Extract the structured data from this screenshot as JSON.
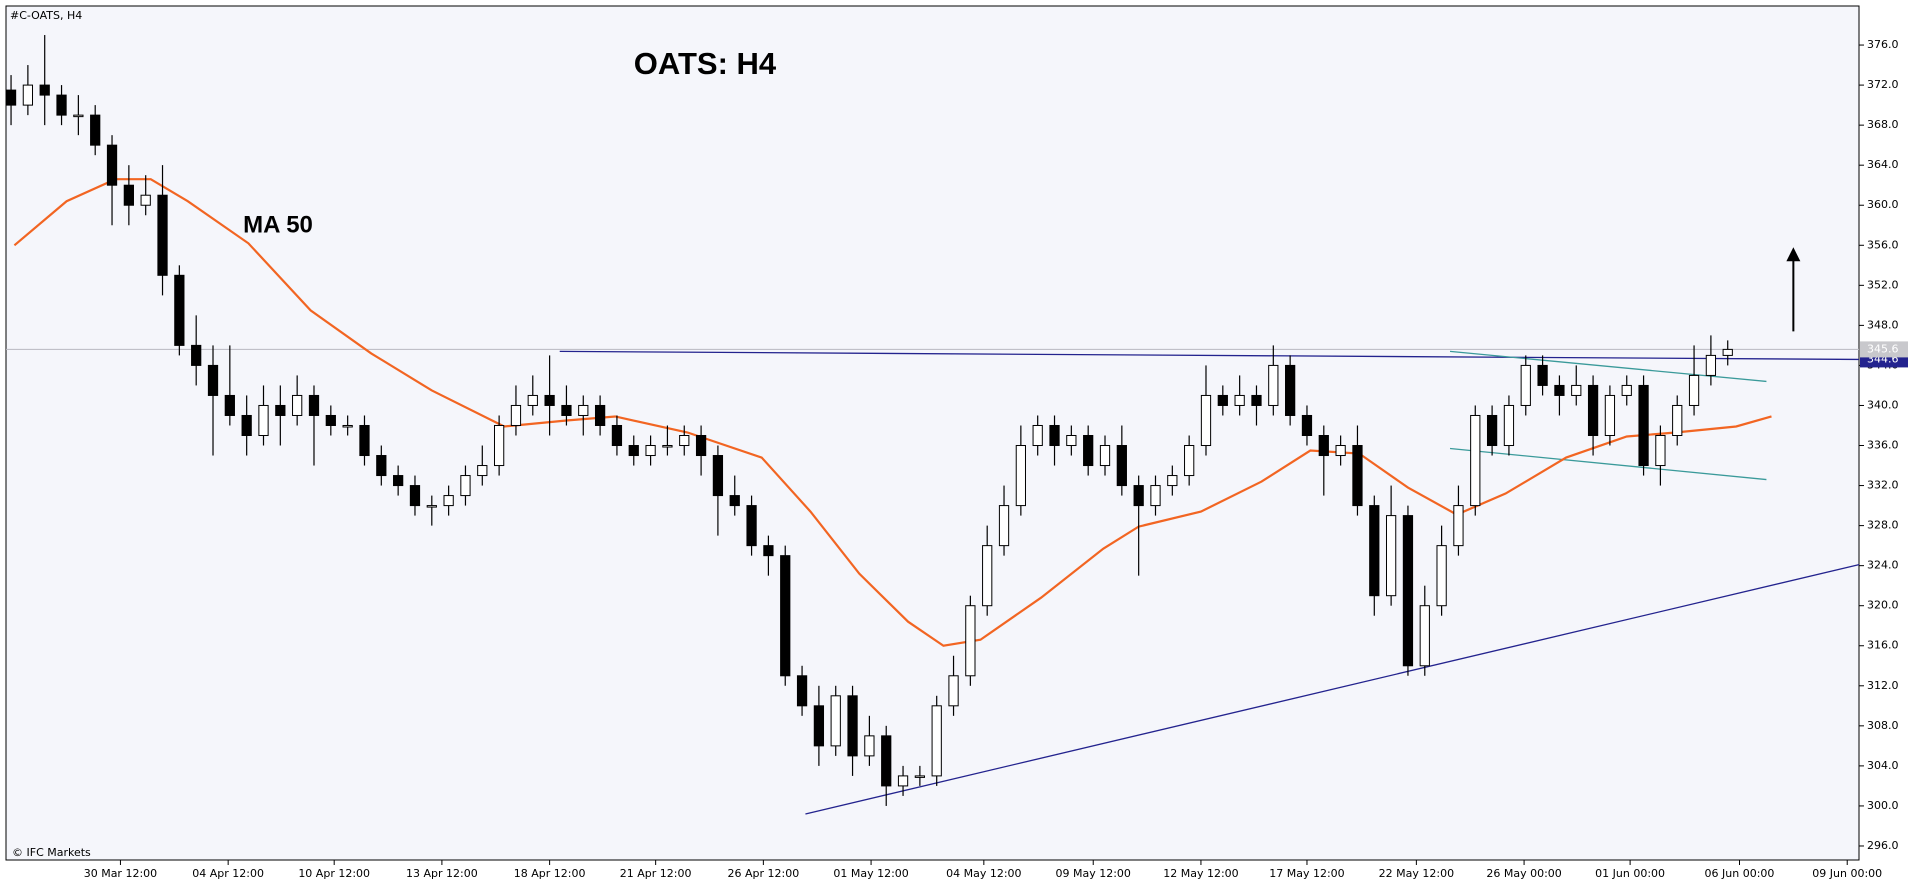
{
  "chart_data": {
    "type": "candlestick",
    "title": "OATS: H4",
    "symbol": "#C-OATS, H4",
    "watermark": "© IFC Markets",
    "xlim": [
      -0.3,
      109.8
    ],
    "ylim": [
      294.6,
      379.9
    ],
    "xticks": [
      {
        "value": 6.5,
        "label": "30 Mar 12:00"
      },
      {
        "value": 12.9,
        "label": "04 Apr 12:00"
      },
      {
        "value": 19.2,
        "label": "10 Apr 12:00"
      },
      {
        "value": 25.6,
        "label": "13 Apr 12:00"
      },
      {
        "value": 32,
        "label": "18 Apr 12:00"
      },
      {
        "value": 38.3,
        "label": "21 Apr 12:00"
      },
      {
        "value": 44.7,
        "label": "26 Apr 12:00"
      },
      {
        "value": 51.1,
        "label": "01 May 12:00"
      },
      {
        "value": 57.8,
        "label": "04 May 12:00"
      },
      {
        "value": 64.3,
        "label": "09 May 12:00"
      },
      {
        "value": 70.7,
        "label": "12 May 12:00"
      },
      {
        "value": 77,
        "label": "17 May 12:00"
      },
      {
        "value": 83.5,
        "label": "22 May 12:00"
      },
      {
        "value": 89.9,
        "label": "26 May 00:00"
      },
      {
        "value": 96.2,
        "label": "01 Jun 00:00"
      },
      {
        "value": 102.7,
        "label": "06 Jun 00:00"
      },
      {
        "value": 109.1,
        "label": "09 Jun 00:00"
      }
    ],
    "yticks": [
      {
        "value": 296,
        "label": "296.0"
      },
      {
        "value": 300,
        "label": "300.0"
      },
      {
        "value": 304,
        "label": "304.0"
      },
      {
        "value": 308,
        "label": "308.0"
      },
      {
        "value": 312,
        "label": "312.0"
      },
      {
        "value": 316,
        "label": "316.0"
      },
      {
        "value": 320,
        "label": "320.0"
      },
      {
        "value": 324,
        "label": "324.0"
      },
      {
        "value": 328,
        "label": "328.0"
      },
      {
        "value": 332,
        "label": "332.0"
      },
      {
        "value": 336,
        "label": "336.0"
      },
      {
        "value": 340,
        "label": "340.0"
      },
      {
        "value": 344,
        "label": "344.0"
      },
      {
        "value": 348,
        "label": "348.0"
      },
      {
        "value": 352,
        "label": "352.0"
      },
      {
        "value": 356,
        "label": "356.0"
      },
      {
        "value": 360,
        "label": "360.0"
      },
      {
        "value": 364,
        "label": "364.0"
      },
      {
        "value": 368,
        "label": "368.0"
      },
      {
        "value": 372,
        "label": "372.0"
      },
      {
        "value": 376,
        "label": "376.0"
      }
    ],
    "candles": {
      "bull_color": "#ffffff",
      "bear_color": "#000000",
      "x": [
        0,
        1,
        2,
        3,
        4,
        5,
        6,
        7,
        8,
        9,
        10,
        11,
        12,
        13,
        14,
        15,
        16,
        17,
        18,
        19,
        20,
        21,
        22,
        23,
        24,
        25,
        26,
        27,
        28,
        29,
        30,
        31,
        32,
        33,
        34,
        35,
        36,
        37,
        38,
        39,
        40,
        41,
        42,
        43,
        44,
        45,
        46,
        47,
        48,
        49,
        50,
        51,
        52,
        53,
        54,
        55,
        56,
        57,
        58,
        59,
        60,
        61,
        62,
        63,
        64,
        65,
        66,
        67,
        68,
        69,
        70,
        71,
        72,
        73,
        74,
        75,
        76,
        77,
        78,
        79,
        80,
        81,
        82,
        83,
        84,
        85,
        86,
        87,
        88,
        89,
        90,
        91,
        92,
        93,
        94,
        95,
        96,
        97,
        98,
        99,
        100,
        101,
        102
      ],
      "open": [
        371.5,
        370,
        372,
        371,
        369,
        369,
        366,
        362,
        360,
        361,
        353,
        346,
        344,
        341,
        339,
        337,
        340,
        339,
        341,
        339,
        338,
        338,
        335,
        333,
        332,
        330,
        330,
        331,
        333,
        334,
        338,
        340,
        341,
        340,
        339,
        340,
        338,
        336,
        335,
        336,
        336,
        337,
        335,
        331,
        330,
        326,
        325,
        313,
        310,
        306,
        311,
        305,
        307,
        302,
        303,
        303,
        310,
        313,
        320,
        326,
        330,
        336,
        338,
        336,
        337,
        334,
        336,
        332,
        330,
        332,
        333,
        336,
        341,
        340,
        341,
        340,
        344,
        339,
        337,
        335,
        336,
        330,
        321,
        329,
        314,
        320,
        326,
        330,
        339,
        336,
        340,
        344,
        342,
        341,
        342,
        337,
        341,
        342,
        334,
        337,
        340,
        343,
        345
      ],
      "high": [
        373,
        374,
        377,
        372,
        371,
        370,
        367,
        364,
        363,
        364,
        354,
        349,
        346,
        346,
        341,
        342,
        342,
        343,
        342,
        340,
        339,
        339,
        336,
        334,
        333,
        331,
        332,
        334,
        336,
        339,
        342,
        343,
        345,
        342,
        341,
        341,
        339,
        337,
        337,
        338,
        338,
        338,
        336,
        333,
        331,
        327,
        326,
        314,
        312,
        312,
        312,
        309,
        308,
        304,
        304,
        311,
        315,
        321,
        328,
        332,
        338,
        339,
        339,
        338,
        338,
        337,
        338,
        333,
        333,
        334,
        337,
        344,
        342,
        343,
        342,
        346,
        345,
        340,
        338,
        337,
        338,
        331,
        332,
        330,
        322,
        328,
        332,
        340,
        340,
        341,
        345,
        345,
        343,
        344,
        343,
        342,
        343,
        343,
        338,
        341,
        346,
        347,
        346.5
      ],
      "low": [
        368,
        369,
        368,
        368,
        367,
        365,
        358,
        358,
        359,
        351,
        345,
        342,
        335,
        338,
        335,
        336,
        336,
        338,
        334,
        337,
        337,
        334,
        332,
        331,
        329,
        328,
        329,
        330,
        332,
        333,
        337,
        339,
        337,
        338,
        337,
        337,
        335,
        334,
        334,
        335,
        335,
        333,
        327,
        329,
        325,
        323,
        312,
        309,
        304,
        305,
        303,
        304,
        300,
        301,
        302,
        302,
        309,
        312,
        319,
        325,
        329,
        335,
        334,
        335,
        333,
        333,
        331,
        323,
        329,
        331,
        332,
        335,
        339,
        339,
        338,
        339,
        338,
        336,
        331,
        334,
        329,
        319,
        320,
        313,
        313,
        319,
        325,
        329,
        335,
        335,
        339,
        341,
        339,
        340,
        335,
        336,
        340,
        333,
        332,
        336,
        339,
        342,
        344
      ],
      "close": [
        370,
        372,
        371,
        369,
        369,
        366,
        362,
        360,
        361,
        353,
        346,
        344,
        341,
        339,
        337,
        340,
        339,
        341,
        339,
        338,
        338,
        335,
        333,
        332,
        330,
        330,
        331,
        333,
        334,
        338,
        340,
        341,
        340,
        339,
        340,
        338,
        336,
        335,
        336,
        336,
        337,
        335,
        331,
        330,
        326,
        325,
        313,
        310,
        306,
        311,
        305,
        307,
        302,
        303,
        303,
        310,
        313,
        320,
        326,
        330,
        336,
        338,
        336,
        337,
        334,
        336,
        332,
        330,
        332,
        333,
        336,
        341,
        340,
        341,
        340,
        344,
        339,
        337,
        335,
        336,
        330,
        321,
        329,
        314,
        320,
        326,
        330,
        339,
        336,
        340,
        344,
        342,
        341,
        342,
        337,
        341,
        342,
        334,
        337,
        340,
        343,
        345,
        345.6
      ]
    },
    "ma": {
      "name": "MA 50",
      "color": "#f26522",
      "x": [
        0.2,
        3.3,
        6.2,
        8.3,
        10.5,
        14.1,
        17.8,
        21.4,
        25,
        29.3,
        33,
        35.9,
        40.2,
        44.6,
        47.5,
        50.4,
        53.3,
        55.4,
        57.6,
        61.2,
        64.9,
        67,
        70.7,
        74.3,
        77.2,
        80.1,
        83,
        85.9,
        88.8,
        92.4,
        96,
        98.9,
        102.5,
        104.6
      ],
      "values": [
        356,
        360.4,
        362.6,
        362.6,
        360.4,
        356.2,
        349.5,
        345.2,
        341.5,
        337.9,
        338.5,
        338.9,
        337.3,
        334.8,
        329.4,
        323.2,
        318.4,
        316,
        316.6,
        320.8,
        325.7,
        327.9,
        329.4,
        332.4,
        335.5,
        335.2,
        331.8,
        329.1,
        331.2,
        334.8,
        336.9,
        337.3,
        337.9,
        338.9
      ]
    },
    "trendlines": [
      {
        "color": "#23238e",
        "x": [
          32.6,
          110.1
        ],
        "values": [
          345.4,
          344.6
        ]
      },
      {
        "color": "#23238e",
        "x": [
          47.2,
          110.1
        ],
        "values": [
          299.2,
          324.1
        ]
      },
      {
        "color": "#3a9a9a",
        "x": [
          85.5,
          104.3
        ],
        "values": [
          345.4,
          342.4
        ]
      },
      {
        "color": "#3a9a9a",
        "x": [
          85.5,
          104.3
        ],
        "values": [
          335.7,
          332.6
        ]
      }
    ],
    "arrow": {
      "color": "#000000",
      "x": [
        105.9,
        105.9
      ],
      "values": [
        347.4,
        355.8
      ]
    },
    "last_price": 345.6
  }
}
